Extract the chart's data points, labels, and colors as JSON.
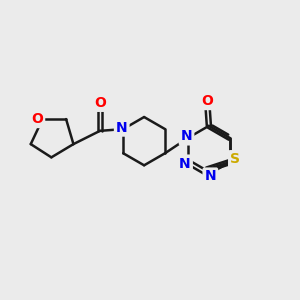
{
  "background_color": "#ebebeb",
  "bond_color": "#1a1a1a",
  "bond_width": 1.8,
  "atom_colors": {
    "O": "#ff0000",
    "N": "#0000ee",
    "S": "#ccaa00",
    "C": "#1a1a1a"
  },
  "font_size": 10,
  "fig_size": [
    3.0,
    3.0
  ],
  "dpi": 100
}
